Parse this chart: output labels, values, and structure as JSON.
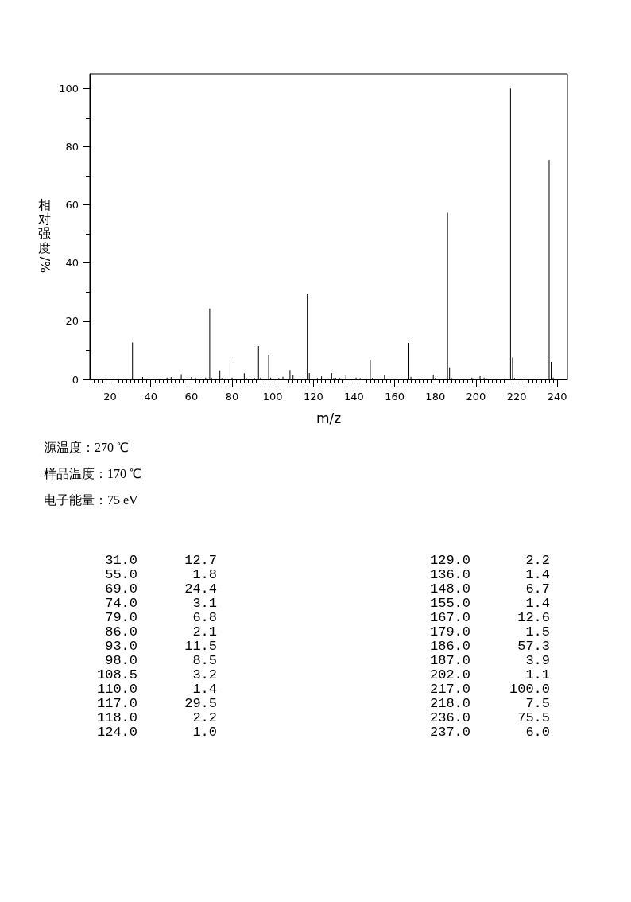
{
  "chart_data": [
    {
      "type": "bar",
      "xlabel": "m/z",
      "ylabel": "相对强度/%",
      "color": "#000000",
      "x": [
        18,
        31,
        36,
        48,
        50,
        55,
        60,
        62,
        67,
        69,
        70,
        74,
        75,
        77,
        79,
        80,
        86,
        87,
        91,
        93,
        94,
        98,
        99,
        103,
        105,
        108.5,
        110,
        117,
        118,
        122,
        124,
        129,
        130,
        131,
        133,
        136,
        141,
        143,
        148,
        149,
        155,
        167,
        168,
        179,
        180,
        186,
        187,
        188,
        198,
        199,
        202,
        204,
        205,
        217,
        218,
        219,
        236,
        237,
        238
      ],
      "values": [
        0.8,
        12.7,
        0.8,
        0.6,
        0.8,
        1.8,
        0.8,
        0.6,
        0.6,
        24.4,
        0.5,
        3.1,
        0.5,
        0.5,
        6.8,
        0.6,
        2.1,
        0.5,
        0.5,
        11.5,
        0.6,
        8.5,
        0.6,
        0.5,
        0.9,
        3.2,
        1.4,
        29.5,
        2.2,
        0.5,
        1.0,
        2.2,
        0.5,
        0.5,
        0.5,
        1.4,
        0.6,
        0.5,
        6.7,
        0.5,
        1.4,
        12.6,
        0.9,
        1.5,
        0.5,
        57.3,
        3.9,
        0.5,
        0.6,
        0.5,
        1.1,
        0.6,
        0.5,
        100.0,
        7.5,
        0.5,
        75.5,
        6.0,
        0.6
      ],
      "xlim": [
        10,
        245
      ],
      "ylim": [
        0,
        105
      ],
      "xticks": [
        {
          "value": 12,
          "label": null
        },
        {
          "value": 14,
          "label": null
        },
        {
          "value": 16,
          "label": null
        },
        {
          "value": 18,
          "label": null
        },
        20,
        {
          "value": 22,
          "label": null
        },
        {
          "value": 24,
          "label": null
        },
        {
          "value": 26,
          "label": null
        },
        {
          "value": 28,
          "label": null
        },
        {
          "value": 30,
          "label": null
        },
        {
          "value": 32,
          "label": null
        },
        {
          "value": 34,
          "label": null
        },
        {
          "value": 36,
          "label": null
        },
        {
          "value": 38,
          "label": null
        },
        40,
        {
          "value": 42,
          "label": null
        },
        {
          "value": 44,
          "label": null
        },
        {
          "value": 46,
          "label": null
        },
        {
          "value": 48,
          "label": null
        },
        {
          "value": 50,
          "label": null
        },
        {
          "value": 52,
          "label": null
        },
        {
          "value": 54,
          "label": null
        },
        {
          "value": 56,
          "label": null
        },
        {
          "value": 58,
          "label": null
        },
        60,
        {
          "value": 62,
          "label": null
        },
        {
          "value": 64,
          "label": null
        },
        {
          "value": 66,
          "label": null
        },
        {
          "value": 68,
          "label": null
        },
        {
          "value": 70,
          "label": null
        },
        {
          "value": 72,
          "label": null
        },
        {
          "value": 74,
          "label": null
        },
        {
          "value": 76,
          "label": null
        },
        {
          "value": 78,
          "label": null
        },
        80,
        {
          "value": 82,
          "label": null
        },
        {
          "value": 84,
          "label": null
        },
        {
          "value": 86,
          "label": null
        },
        {
          "value": 88,
          "label": null
        },
        {
          "value": 90,
          "label": null
        },
        {
          "value": 92,
          "label": null
        },
        {
          "value": 94,
          "label": null
        },
        {
          "value": 96,
          "label": null
        },
        {
          "value": 98,
          "label": null
        },
        100,
        {
          "value": 102,
          "label": null
        },
        {
          "value": 104,
          "label": null
        },
        {
          "value": 106,
          "label": null
        },
        {
          "value": 108,
          "label": null
        },
        {
          "value": 110,
          "label": null
        },
        {
          "value": 112,
          "label": null
        },
        {
          "value": 114,
          "label": null
        },
        {
          "value": 116,
          "label": null
        },
        {
          "value": 118,
          "label": null
        },
        120,
        {
          "value": 122,
          "label": null
        },
        {
          "value": 124,
          "label": null
        },
        {
          "value": 126,
          "label": null
        },
        {
          "value": 128,
          "label": null
        },
        {
          "value": 130,
          "label": null
        },
        {
          "value": 132,
          "label": null
        },
        {
          "value": 134,
          "label": null
        },
        {
          "value": 136,
          "label": null
        },
        {
          "value": 138,
          "label": null
        },
        140,
        {
          "value": 142,
          "label": null
        },
        {
          "value": 144,
          "label": null
        },
        {
          "value": 146,
          "label": null
        },
        {
          "value": 148,
          "label": null
        },
        {
          "value": 150,
          "label": null
        },
        {
          "value": 152,
          "label": null
        },
        {
          "value": 154,
          "label": null
        },
        {
          "value": 156,
          "label": null
        },
        {
          "value": 158,
          "label": null
        },
        160,
        {
          "value": 162,
          "label": null
        },
        {
          "value": 164,
          "label": null
        },
        {
          "value": 166,
          "label": null
        },
        {
          "value": 168,
          "label": null
        },
        {
          "value": 170,
          "label": null
        },
        {
          "value": 172,
          "label": null
        },
        {
          "value": 174,
          "label": null
        },
        {
          "value": 176,
          "label": null
        },
        {
          "value": 178,
          "label": null
        },
        180,
        {
          "value": 182,
          "label": null
        },
        {
          "value": 184,
          "label": null
        },
        {
          "value": 186,
          "label": null
        },
        {
          "value": 188,
          "label": null
        },
        {
          "value": 190,
          "label": null
        },
        {
          "value": 192,
          "label": null
        },
        {
          "value": 194,
          "label": null
        },
        {
          "value": 196,
          "label": null
        },
        {
          "value": 198,
          "label": null
        },
        200,
        {
          "value": 202,
          "label": null
        },
        {
          "value": 204,
          "label": null
        },
        {
          "value": 206,
          "label": null
        },
        {
          "value": 208,
          "label": null
        },
        {
          "value": 210,
          "label": null
        },
        {
          "value": 212,
          "label": null
        },
        {
          "value": 214,
          "label": null
        },
        {
          "value": 216,
          "label": null
        },
        {
          "value": 218,
          "label": null
        },
        220,
        {
          "value": 222,
          "label": null
        },
        {
          "value": 224,
          "label": null
        },
        {
          "value": 226,
          "label": null
        },
        {
          "value": 228,
          "label": null
        },
        {
          "value": 230,
          "label": null
        },
        {
          "value": 232,
          "label": null
        },
        {
          "value": 234,
          "label": null
        },
        {
          "value": 236,
          "label": null
        },
        {
          "value": 238,
          "label": null
        },
        240
      ],
      "yticks": [
        0,
        {
          "value": 10,
          "label": null
        },
        20,
        {
          "value": 30,
          "label": null
        },
        40,
        {
          "value": 50,
          "label": null
        },
        60,
        {
          "value": 70,
          "label": null
        },
        80,
        {
          "value": 90,
          "label": null
        },
        100
      ],
      "annotations": [
        "源温度：270 ℃",
        "样品温度：170 ℃",
        "电子能量：75 eV"
      ]
    },
    {
      "type": "other",
      "annotations": [
        "31.0",
        "12.7",
        "55.0",
        "1.8",
        "69.0",
        "24.4",
        "74.0",
        "3.1",
        "79.0",
        "6.8",
        "86.0",
        "2.1",
        "93.0",
        "11.5",
        "98.0",
        "8.5",
        "108.5",
        "3.2",
        "110.0",
        "1.4",
        "117.0",
        "29.5",
        "118.0",
        "2.2",
        "124.0",
        "1.0",
        "129.0",
        "2.2",
        "136.0",
        "1.4",
        "148.0",
        "6.7",
        "155.0",
        "1.4",
        "167.0",
        "12.6",
        "179.0",
        "1.5",
        "186.0",
        "57.3",
        "187.0",
        "3.9",
        "202.0",
        "1.1",
        "217.0",
        "100.0",
        "218.0",
        "7.5",
        "236.0",
        "75.5",
        "237.0",
        "6.0"
      ]
    }
  ]
}
